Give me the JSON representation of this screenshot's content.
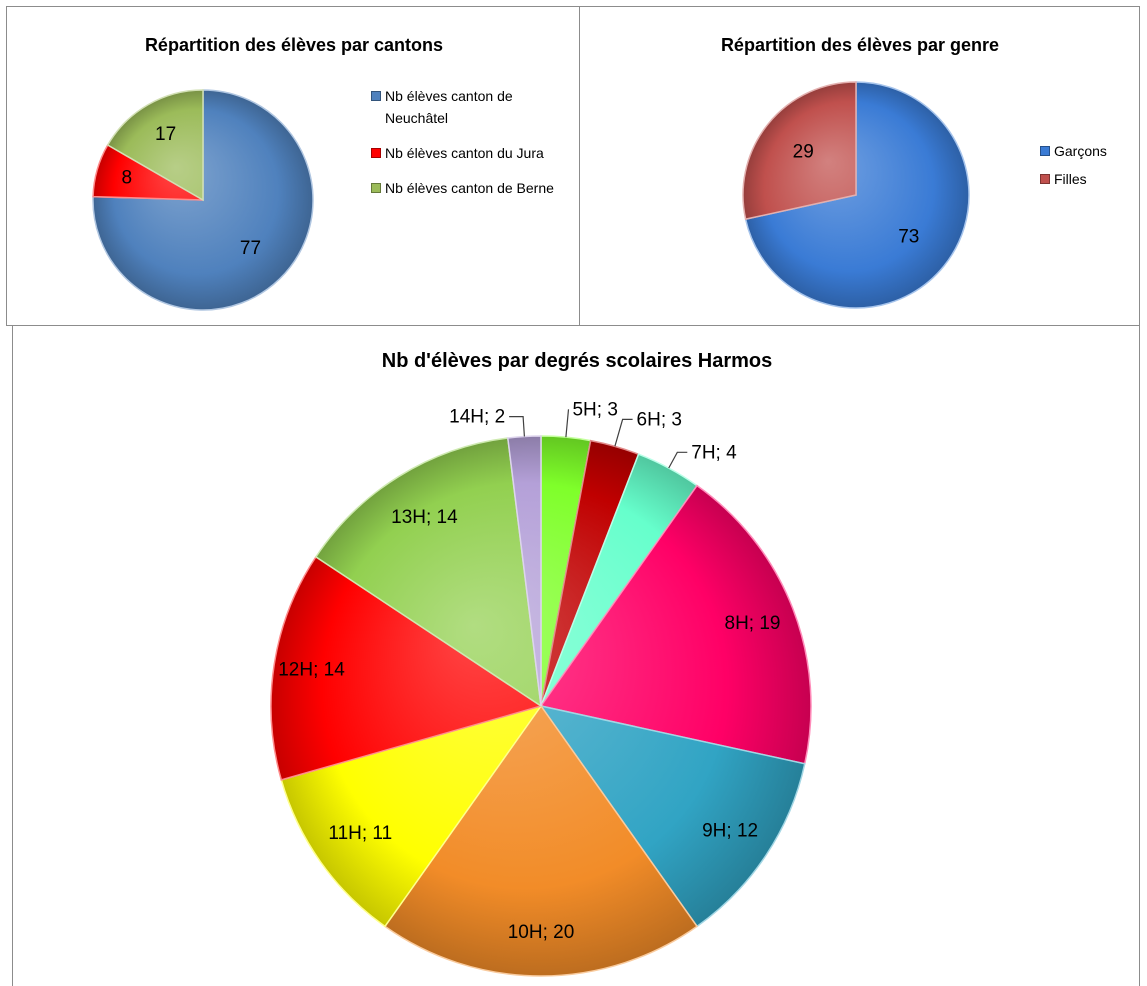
{
  "chart_data": [
    {
      "type": "pie",
      "title": "Répartition des élèves par cantons",
      "categories": [
        "Nb élèves canton de Neuchâtel",
        "Nb élèves canton du Jura",
        "Nb élèves canton de Berne"
      ],
      "values": [
        77,
        8,
        17
      ],
      "colors": [
        "#4f81bd",
        "#ff0000",
        "#9bbb59"
      ],
      "legend": "right"
    },
    {
      "type": "pie",
      "title": "Répartition des élèves par genre",
      "categories": [
        "Garçons",
        "Filles"
      ],
      "values": [
        73,
        29
      ],
      "colors": [
        "#3a7bd5",
        "#c0504d"
      ],
      "legend": "right"
    },
    {
      "type": "pie",
      "title": "Nb d'élèves par degrés scolaires  Harmos",
      "categories": [
        "5H",
        "6H",
        "7H",
        "8H",
        "9H",
        "10H",
        "11H",
        "12H",
        "13H",
        "14H"
      ],
      "values": [
        3,
        3,
        4,
        19,
        12,
        20,
        11,
        14,
        14,
        2
      ],
      "data_labels": [
        "5H; 3",
        "6H; 3",
        "7H; 4",
        "8H; 19",
        "9H; 12",
        "10H; 20",
        "11H; 11",
        "12H; 14",
        "13H; 14",
        "14H; 2"
      ],
      "colors": [
        "#7fff2a",
        "#c00000",
        "#66ffcc",
        "#ff0066",
        "#31a4c4",
        "#f28c28",
        "#ffff00",
        "#ff0000",
        "#92d050",
        "#b4a0d8"
      ],
      "legend": "none"
    }
  ]
}
